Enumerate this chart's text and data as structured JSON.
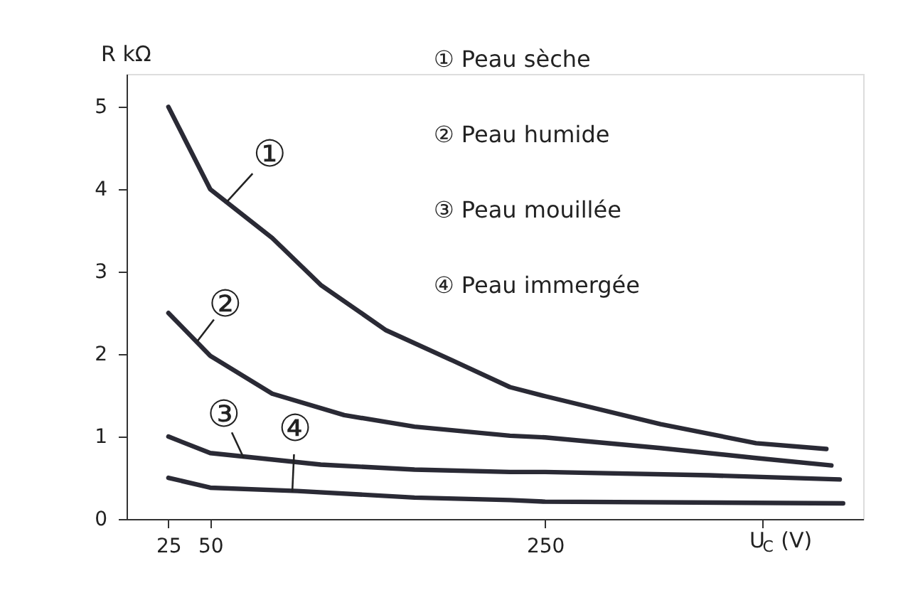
{
  "chart_data": {
    "type": "line",
    "xlabel": "U$_{C}$ (V)",
    "ylabel": "R   kΩ",
    "xlim": [
      0,
      440
    ],
    "ylim": [
      0,
      5.4
    ],
    "xticks": [
      25,
      50,
      250,
      {
        "value": 380,
        "label": null
      }
    ],
    "yticks": [
      0,
      1,
      2,
      3,
      4,
      5
    ],
    "grid": false,
    "marker": "none",
    "line_style": "solid",
    "series": [
      {
        "color": "#2a2a35",
        "x": [
          25,
          50,
          87,
          116,
          155,
          195,
          229,
          250,
          319,
          376,
          418
        ],
        "values": [
          5.0,
          4.0,
          3.41,
          2.84,
          2.29,
          1.92,
          1.6,
          1.49,
          1.15,
          0.92,
          0.85
        ]
      },
      {
        "color": "#2a2a35",
        "x": [
          25,
          50,
          87,
          130,
          172,
          229,
          250,
          319,
          376,
          421
        ],
        "values": [
          2.5,
          1.98,
          1.52,
          1.26,
          1.12,
          1.01,
          0.99,
          0.86,
          0.74,
          0.65
        ]
      },
      {
        "color": "#2a2a35",
        "x": [
          25,
          50,
          116,
          172,
          229,
          250,
          348,
          426
        ],
        "values": [
          1.0,
          0.8,
          0.66,
          0.6,
          0.57,
          0.57,
          0.53,
          0.48
        ]
      },
      {
        "color": "#2a2a35",
        "x": [
          25,
          50,
          102,
          172,
          229,
          250,
          428
        ],
        "values": [
          0.5,
          0.38,
          0.34,
          0.26,
          0.23,
          0.21,
          0.19
        ]
      }
    ],
    "annotations": [
      {
        "text": "①",
        "x": 60,
        "y": 3.85
      },
      {
        "text": "②",
        "x": 42,
        "y": 2.15
      },
      {
        "text": "③",
        "x": 70,
        "y": 0.74
      },
      {
        "text": "④",
        "x": 99,
        "y": 0.33
      },
      "① Peau sèche",
      "② Peau humide",
      "③ Peau mouillée",
      "④ Peau immergée"
    ]
  }
}
